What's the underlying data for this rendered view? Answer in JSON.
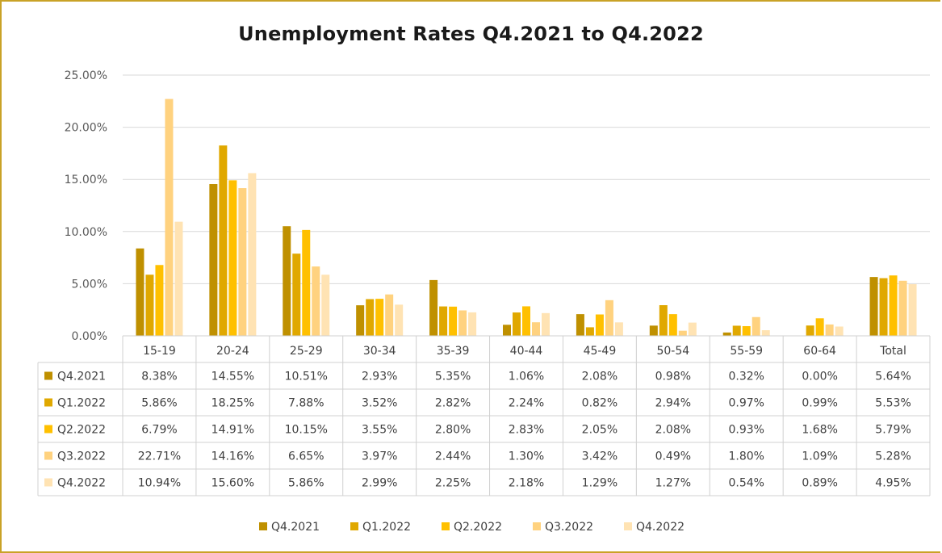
{
  "chart_data": {
    "type": "bar",
    "title": "Unemployment Rates Q4.2021 to Q4.2022",
    "categories": [
      "15-19",
      "20-24",
      "25-29",
      "30-34",
      "35-39",
      "40-44",
      "45-49",
      "50-54",
      "55-59",
      "60-64",
      "Total"
    ],
    "ylim": [
      0,
      25
    ],
    "yticks": [
      "0.00%",
      "5.00%",
      "10.00%",
      "15.00%",
      "20.00%",
      "25.00%"
    ],
    "grid": true,
    "legend_position": "bottom",
    "series": [
      {
        "name": "Q4.2021",
        "color": "#bf9000",
        "values": [
          8.38,
          14.55,
          10.51,
          2.93,
          5.35,
          1.06,
          2.08,
          0.98,
          0.32,
          0.0,
          5.64
        ],
        "labels": [
          "8.38%",
          "14.55%",
          "10.51%",
          "2.93%",
          "5.35%",
          "1.06%",
          "2.08%",
          "0.98%",
          "0.32%",
          "0.00%",
          "5.64%"
        ]
      },
      {
        "name": "Q1.2022",
        "color": "#e0a800",
        "values": [
          5.86,
          18.25,
          7.88,
          3.52,
          2.82,
          2.24,
          0.82,
          2.94,
          0.97,
          0.99,
          5.53
        ],
        "labels": [
          "5.86%",
          "18.25%",
          "7.88%",
          "3.52%",
          "2.82%",
          "2.24%",
          "0.82%",
          "2.94%",
          "0.97%",
          "0.99%",
          "5.53%"
        ]
      },
      {
        "name": "Q2.2022",
        "color": "#ffc000",
        "values": [
          6.79,
          14.91,
          10.15,
          3.55,
          2.8,
          2.83,
          2.05,
          2.08,
          0.93,
          1.68,
          5.79
        ],
        "labels": [
          "6.79%",
          "14.91%",
          "10.15%",
          "3.55%",
          "2.80%",
          "2.83%",
          "2.05%",
          "2.08%",
          "0.93%",
          "1.68%",
          "5.79%"
        ]
      },
      {
        "name": "Q3.2022",
        "color": "#ffd27f",
        "values": [
          22.71,
          14.16,
          6.65,
          3.97,
          2.44,
          1.3,
          3.42,
          0.49,
          1.8,
          1.09,
          5.28
        ],
        "labels": [
          "22.71%",
          "14.16%",
          "6.65%",
          "3.97%",
          "2.44%",
          "1.30%",
          "3.42%",
          "0.49%",
          "1.80%",
          "1.09%",
          "5.28%"
        ]
      },
      {
        "name": "Q4.2022",
        "color": "#ffe3b3",
        "values": [
          10.94,
          15.6,
          5.86,
          2.99,
          2.25,
          2.18,
          1.29,
          1.27,
          0.54,
          0.89,
          4.95
        ],
        "labels": [
          "10.94%",
          "15.60%",
          "5.86%",
          "2.99%",
          "2.25%",
          "2.18%",
          "1.29%",
          "1.27%",
          "0.54%",
          "0.89%",
          "4.95%"
        ]
      }
    ]
  },
  "colors": {
    "frame": "#c9a227",
    "grid": "#d9d9d9",
    "table_border": "#d0d0d0"
  }
}
